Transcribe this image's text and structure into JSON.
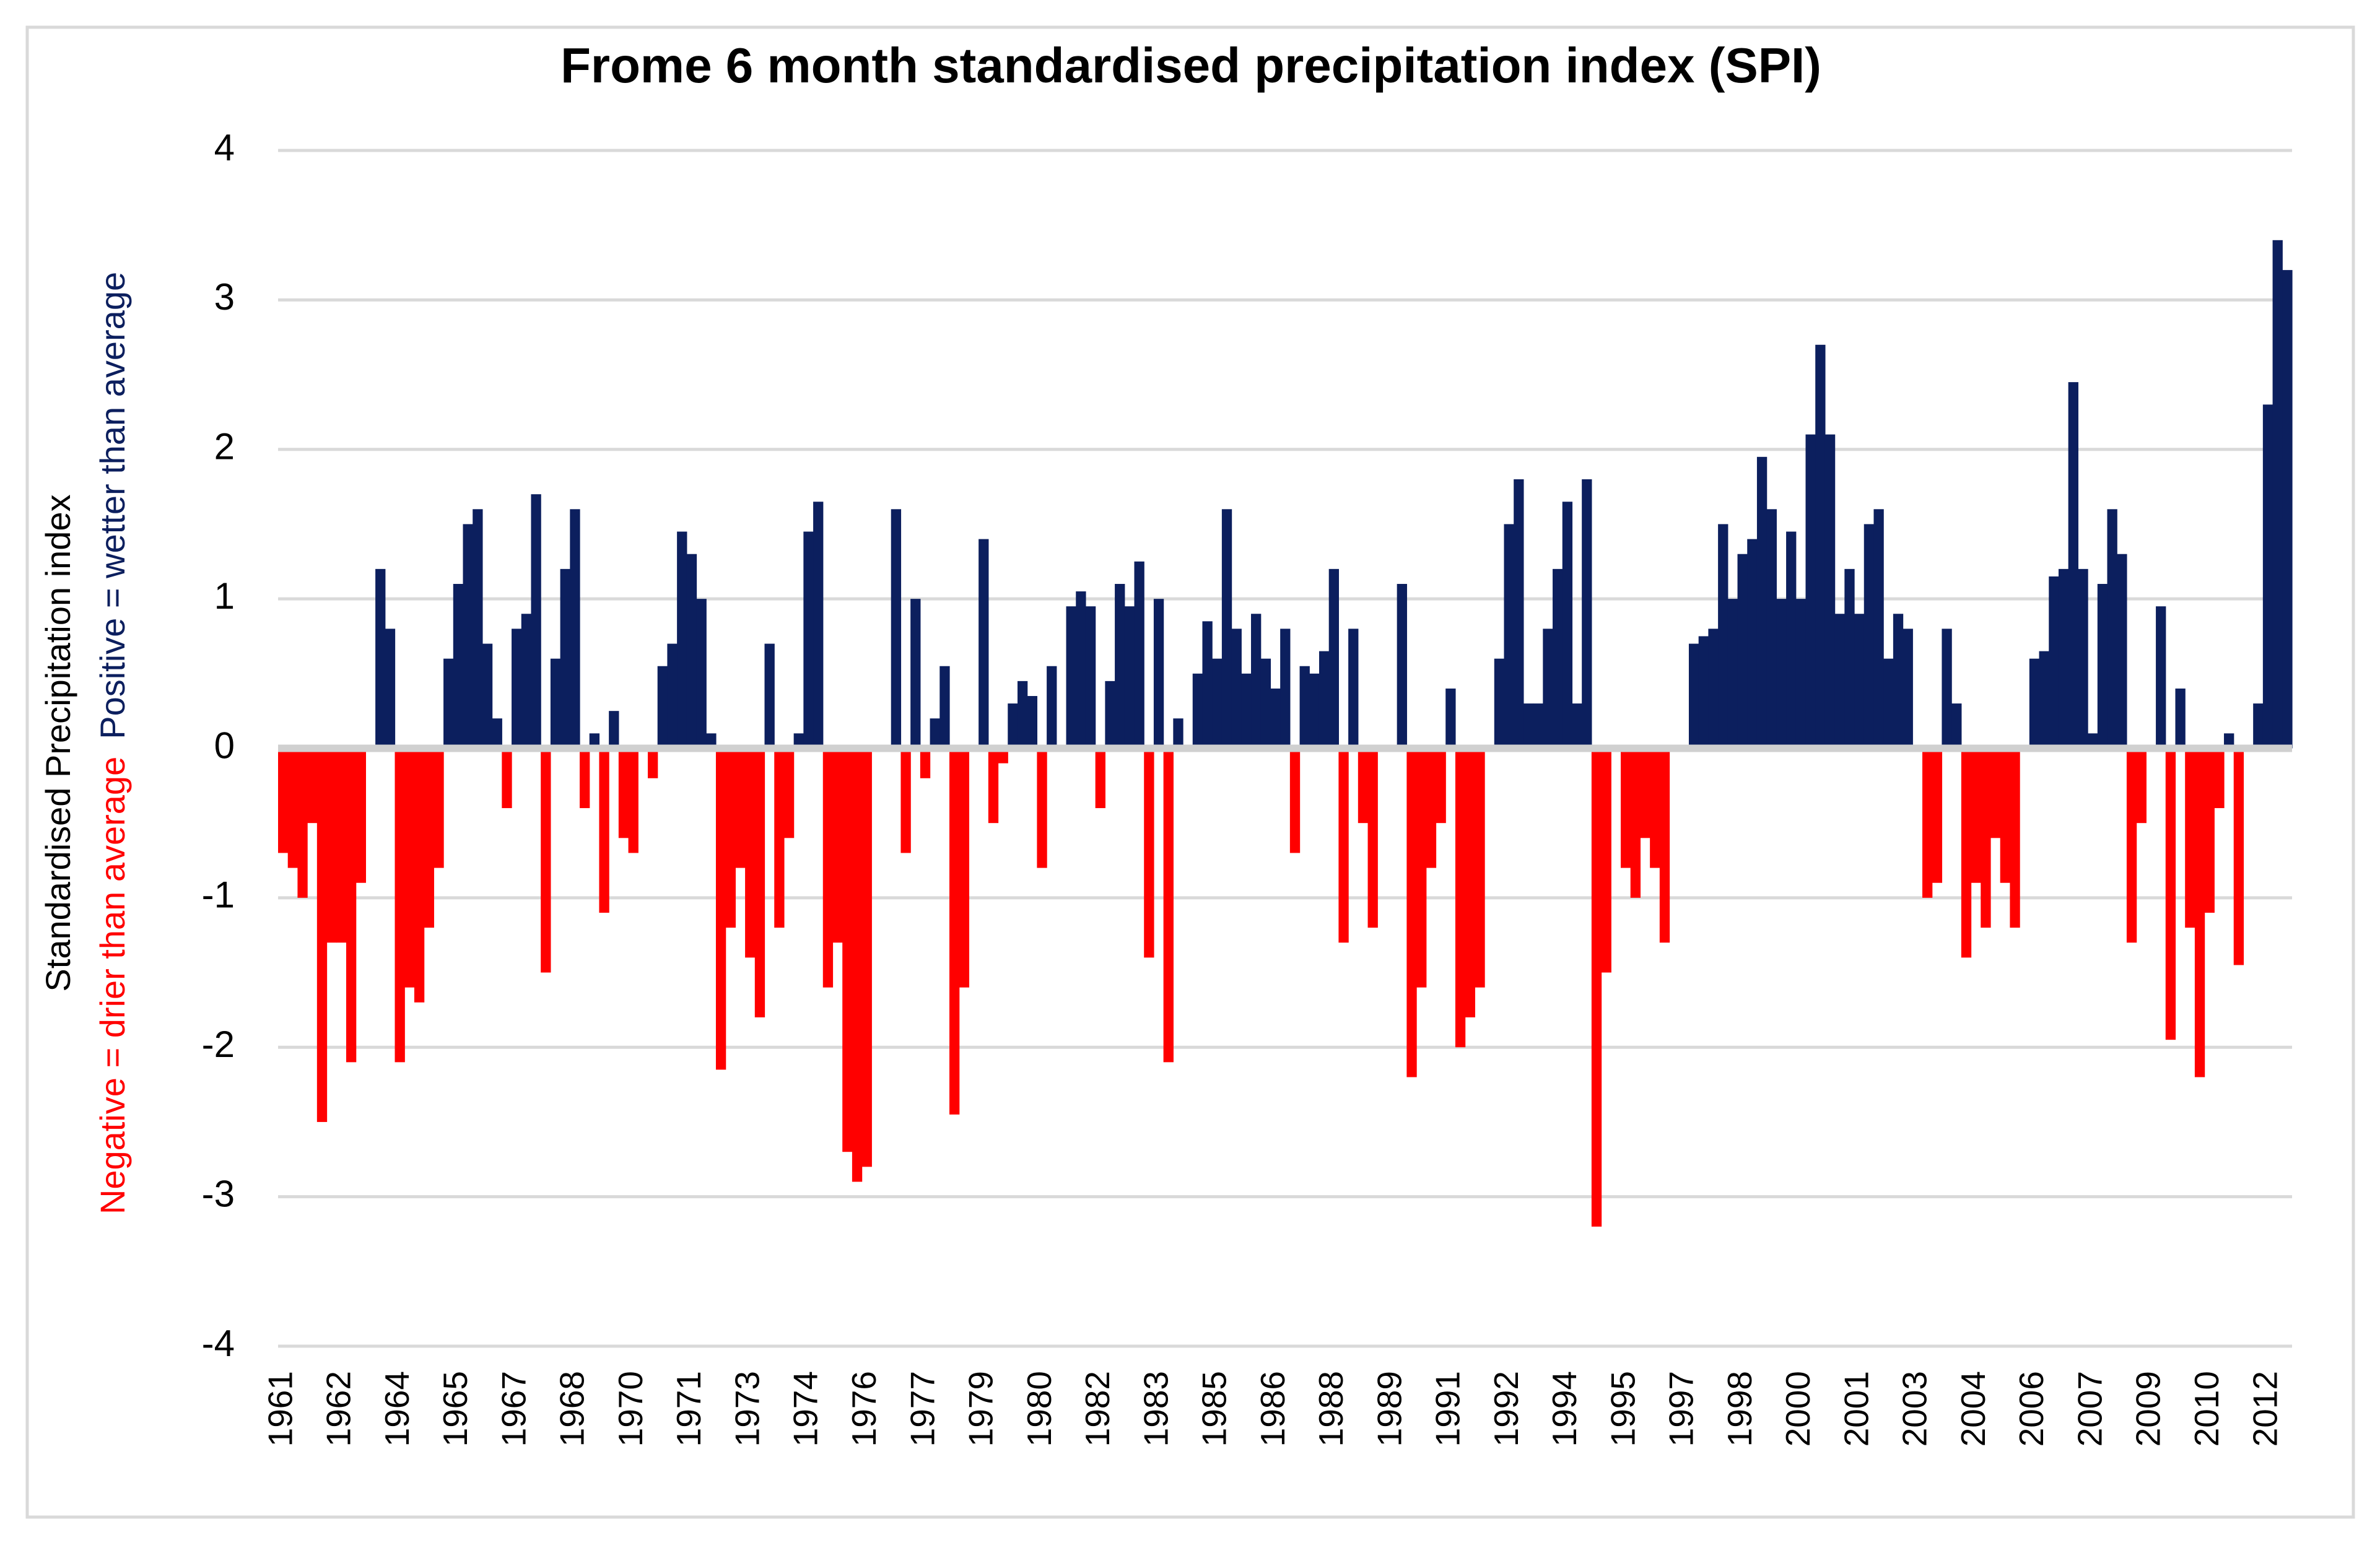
{
  "chart_data": {
    "type": "bar",
    "title": "Frome 6 month standardised precipitation index (SPI)",
    "y_label": "Standardised Precipitation index",
    "y_label_negative": "Negative = drier than average",
    "y_label_positive": "Positive = wetter than average",
    "positive_color": "#0c1f5e",
    "negative_color": "#ff0000",
    "ylim": [
      -4,
      4
    ],
    "yticks": [
      -4,
      -3,
      -2,
      -1,
      0,
      1,
      2,
      3,
      4
    ],
    "grid": true,
    "categories": [
      "1961",
      null,
      null,
      null,
      null,
      null,
      "1962",
      null,
      null,
      null,
      null,
      null,
      "1964",
      null,
      null,
      null,
      null,
      null,
      "1965",
      null,
      null,
      null,
      null,
      null,
      "1967",
      null,
      null,
      null,
      null,
      null,
      "1968",
      null,
      null,
      null,
      null,
      null,
      "1970",
      null,
      null,
      null,
      null,
      null,
      "1971",
      null,
      null,
      null,
      null,
      null,
      "1973",
      null,
      null,
      null,
      null,
      null,
      "1974",
      null,
      null,
      null,
      null,
      null,
      "1976",
      null,
      null,
      null,
      null,
      null,
      "1977",
      null,
      null,
      null,
      null,
      null,
      "1979",
      null,
      null,
      null,
      null,
      null,
      "1980",
      null,
      null,
      null,
      null,
      null,
      "1982",
      null,
      null,
      null,
      null,
      null,
      "1983",
      null,
      null,
      null,
      null,
      null,
      "1985",
      null,
      null,
      null,
      null,
      null,
      "1986",
      null,
      null,
      null,
      null,
      null,
      "1988",
      null,
      null,
      null,
      null,
      null,
      "1989",
      null,
      null,
      null,
      null,
      null,
      "1991",
      null,
      null,
      null,
      null,
      null,
      "1992",
      null,
      null,
      null,
      null,
      null,
      "1994",
      null,
      null,
      null,
      null,
      null,
      "1995",
      null,
      null,
      null,
      null,
      null,
      "1997",
      null,
      null,
      null,
      null,
      null,
      "1998",
      null,
      null,
      null,
      null,
      null,
      "2000",
      null,
      null,
      null,
      null,
      null,
      "2001",
      null,
      null,
      null,
      null,
      null,
      "2003",
      null,
      null,
      null,
      null,
      null,
      "2004",
      null,
      null,
      null,
      null,
      null,
      "2006",
      null,
      null,
      null,
      null,
      null,
      "2007",
      null,
      null,
      null,
      null,
      null,
      "2009",
      null,
      null,
      null,
      null,
      null,
      "2010",
      null,
      null,
      null,
      null,
      null,
      "2012",
      null,
      null
    ],
    "values": [
      -0.7,
      -0.8,
      -1.0,
      -0.5,
      -2.5,
      -1.3,
      -1.3,
      -2.1,
      -0.9,
      0.0,
      1.2,
      0.8,
      -2.1,
      -1.6,
      -1.7,
      -1.2,
      -0.8,
      0.6,
      1.1,
      1.5,
      1.6,
      0.7,
      0.2,
      -0.4,
      0.8,
      0.9,
      1.7,
      -1.5,
      0.6,
      1.2,
      1.6,
      -0.4,
      0.1,
      -1.1,
      0.25,
      -0.6,
      -0.7,
      0.0,
      -0.2,
      0.55,
      0.7,
      1.45,
      1.3,
      1.0,
      0.1,
      -2.15,
      -1.2,
      -0.8,
      -1.4,
      -1.8,
      0.7,
      -1.2,
      -0.6,
      0.1,
      1.45,
      1.65,
      -1.6,
      -1.3,
      -2.7,
      -2.9,
      -2.8,
      0.0,
      0.0,
      1.6,
      -0.7,
      1.0,
      -0.2,
      0.2,
      0.55,
      -2.45,
      -1.6,
      0.0,
      1.4,
      -0.5,
      -0.1,
      0.3,
      0.45,
      0.35,
      -0.8,
      0.55,
      0.0,
      0.95,
      1.05,
      0.95,
      -0.4,
      0.45,
      1.1,
      0.95,
      1.25,
      -1.4,
      1.0,
      -2.1,
      0.2,
      0.0,
      0.5,
      0.85,
      0.6,
      1.6,
      0.8,
      0.5,
      0.9,
      0.6,
      0.4,
      0.8,
      -0.7,
      0.55,
      0.5,
      0.65,
      1.2,
      -1.3,
      0.8,
      -0.5,
      -1.2,
      0.0,
      0.0,
      1.1,
      -2.2,
      -1.6,
      -0.8,
      -0.5,
      0.4,
      -2.0,
      -1.8,
      -1.6,
      0.0,
      0.6,
      1.5,
      1.8,
      0.3,
      0.3,
      0.8,
      1.2,
      1.65,
      0.3,
      1.8,
      -3.2,
      -1.5,
      0.0,
      -0.8,
      -1.0,
      -0.6,
      -0.8,
      -1.3,
      0.0,
      0.0,
      0.7,
      0.75,
      0.8,
      1.5,
      1.0,
      1.3,
      1.4,
      1.95,
      1.6,
      1.0,
      1.45,
      1.0,
      2.1,
      2.7,
      2.1,
      0.9,
      1.2,
      0.9,
      1.5,
      1.6,
      0.6,
      0.9,
      0.8,
      0.0,
      -1.0,
      -0.9,
      0.8,
      0.3,
      -1.4,
      -0.9,
      -1.2,
      -0.6,
      -0.9,
      -1.2,
      0.0,
      0.6,
      0.65,
      1.15,
      1.2,
      2.45,
      1.2,
      0.1,
      1.1,
      1.6,
      1.3,
      -1.3,
      -0.5,
      0.0,
      0.95,
      -1.95,
      0.4,
      -1.2,
      -2.2,
      -1.1,
      -0.4,
      0.1,
      -1.45,
      0.0,
      0.3,
      2.3,
      3.4,
      3.2
    ]
  }
}
